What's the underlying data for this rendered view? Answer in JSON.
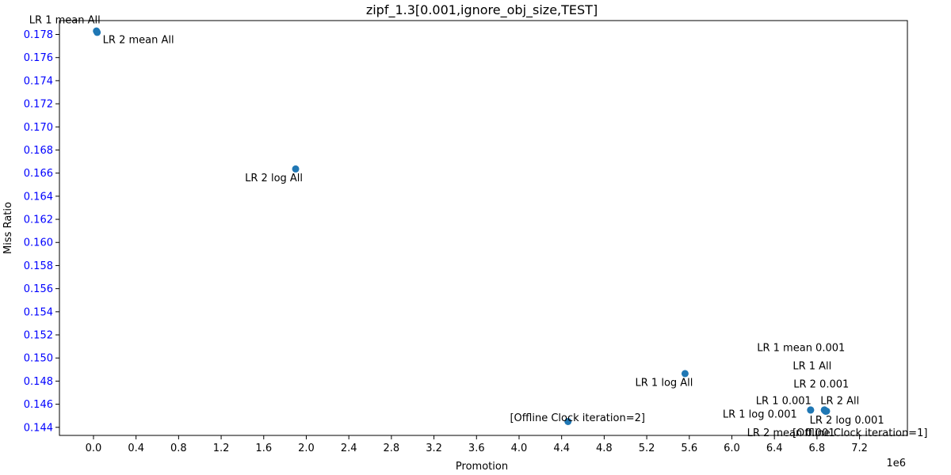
{
  "chart_data": {
    "type": "scatter",
    "title": "zipf_1.3[0.001,ignore_obj_size,TEST]",
    "xlabel": "Promotion",
    "ylabel": "Miss Ratio",
    "x_offset_label": "1e6",
    "xlim": [
      -0.32,
      7.65
    ],
    "ylim": [
      0.1433,
      0.1792
    ],
    "x_ticks": [
      0.0,
      0.4,
      0.8,
      1.2,
      1.6,
      2.0,
      2.4,
      2.8,
      3.2,
      3.6,
      4.0,
      4.4,
      4.8,
      5.2,
      5.6,
      6.0,
      6.4,
      6.8,
      7.2
    ],
    "x_tick_labels": [
      "0.0",
      "0.4",
      "0.8",
      "1.2",
      "1.6",
      "2.0",
      "2.4",
      "2.8",
      "3.2",
      "3.6",
      "4.0",
      "4.4",
      "4.8",
      "5.2",
      "5.6",
      "6.0",
      "6.4",
      "6.8",
      "7.2"
    ],
    "y_ticks": [
      0.144,
      0.146,
      0.148,
      0.15,
      0.152,
      0.154,
      0.156,
      0.158,
      0.16,
      0.162,
      0.164,
      0.166,
      0.168,
      0.17,
      0.172,
      0.174,
      0.176,
      0.178
    ],
    "y_tick_labels": [
      "0.144",
      "0.146",
      "0.148",
      "0.150",
      "0.152",
      "0.154",
      "0.156",
      "0.158",
      "0.160",
      "0.162",
      "0.164",
      "0.166",
      "0.168",
      "0.170",
      "0.172",
      "0.174",
      "0.176",
      "0.178"
    ],
    "y_tick_color": "#0000ff",
    "marker_color": "#1f77b4",
    "grid": false,
    "points": [
      {
        "label": "LR 1 mean All",
        "x": 0.028,
        "y": 0.1783,
        "anchor": "end",
        "ldx": 5,
        "ldy": -14
      },
      {
        "label": "LR 2 mean All",
        "x": 0.035,
        "y": 0.17818,
        "anchor": "start",
        "ldx": 7,
        "ldy": 9
      },
      {
        "label": "LR 2 log All",
        "x": 1.9,
        "y": 0.16636,
        "anchor": "end",
        "ldx": 9,
        "ldy": 11
      },
      {
        "label": "LR 1 log All",
        "x": 5.56,
        "y": 0.14865,
        "anchor": "end",
        "ldx": 10,
        "ldy": 11
      },
      {
        "label": "[Offline Clock iteration=2]",
        "x": 4.46,
        "y": 0.1445,
        "anchor": "middle",
        "ldx": 12,
        "ldy": -5
      },
      {
        "label": "LR 1 log 0.001",
        "x": 6.74,
        "y": 0.1455,
        "anchor": "end",
        "ldx": -17,
        "ldy": 5
      },
      {
        "label": "LR 1 0.001",
        "x": 6.74,
        "y": 0.1455,
        "anchor": "end",
        "ldx": 1,
        "ldy": -12
      },
      {
        "label": "LR 2 All",
        "x": 6.87,
        "y": 0.1455,
        "anchor": "start",
        "ldx": -5,
        "ldy": -12
      },
      {
        "label": "LR 2 log 0.001",
        "x": 6.88,
        "y": 0.1454,
        "anchor": "start",
        "ldx": -20,
        "ldy": 11
      },
      {
        "label": "LR 2 mean 0.001",
        "x": 6.88,
        "y": 0.1454,
        "anchor": "end",
        "ldx": 12,
        "ldy": 27
      },
      {
        "label": "[Offline Clock iteration=1]",
        "x": 6.89,
        "y": 0.1454,
        "anchor": "start",
        "ldx": -43,
        "ldy": 27
      },
      {
        "label": "LR 2 0.001",
        "x": 6.87,
        "y": 0.1455,
        "anchor": "end",
        "ldx": 31,
        "ldy": -33
      },
      {
        "label": "LR 1 All",
        "x": 6.87,
        "y": 0.1455,
        "anchor": "end",
        "ldx": 9,
        "ldy": -56
      },
      {
        "label": "LR 1 mean 0.001",
        "x": 6.87,
        "y": 0.1455,
        "anchor": "end",
        "ldx": 26,
        "ldy": -79
      }
    ]
  }
}
